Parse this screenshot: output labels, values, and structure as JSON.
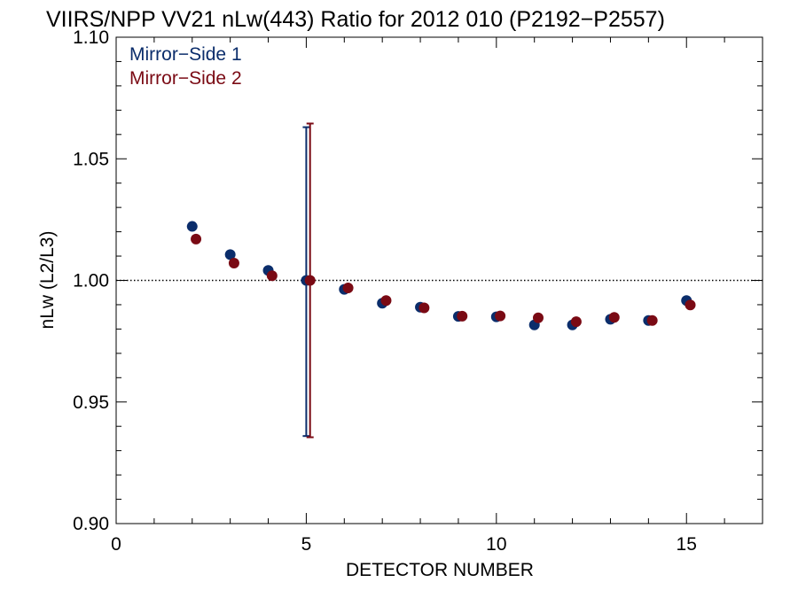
{
  "chart_data": {
    "type": "scatter",
    "title": "VIIRS/NPP VV21 nLw(443) Ratio for 2012 010 (P2192−P2557)",
    "xlabel": "DETECTOR NUMBER",
    "ylabel": "nLw (L2/L3)",
    "xlim": [
      0,
      17
    ],
    "ylim": [
      0.9,
      1.1
    ],
    "x_ticks": [
      0,
      5,
      10,
      15
    ],
    "x_tick_labels": [
      "0",
      "5",
      "10",
      "15"
    ],
    "y_ticks": [
      0.9,
      0.95,
      1.0,
      1.05,
      1.1
    ],
    "y_tick_labels": [
      "0.90",
      "0.95",
      "1.00",
      "1.05",
      "1.10"
    ],
    "reference_line": 1.0,
    "legend_position": "top-left",
    "series": [
      {
        "name": "Mirror−Side 1",
        "color": "#0b2d6b",
        "x_offset": 0,
        "x": [
          2,
          3,
          4,
          5,
          6,
          7,
          8,
          9,
          10,
          11,
          12,
          13,
          14,
          15
        ],
        "values": [
          1.0222,
          1.0106,
          1.0041,
          1.0,
          0.9963,
          0.9906,
          0.989,
          0.9852,
          0.985,
          0.9817,
          0.9817,
          0.984,
          0.9835,
          0.9917
        ],
        "error_bar": {
          "x": 5,
          "low": 0.936,
          "high": 1.063
        }
      },
      {
        "name": "Mirror−Side 2",
        "color": "#7a0a14",
        "x_offset": 0.1,
        "x": [
          2,
          3,
          4,
          5,
          6,
          7,
          8,
          9,
          10,
          11,
          12,
          13,
          14,
          15
        ],
        "values": [
          1.017,
          1.0071,
          1.0019,
          1.0,
          0.9969,
          0.9917,
          0.9887,
          0.9853,
          0.9854,
          0.9846,
          0.983,
          0.9848,
          0.9835,
          0.9899
        ],
        "error_bar": {
          "x": 5,
          "low": 0.9355,
          "high": 1.0645
        }
      }
    ]
  }
}
